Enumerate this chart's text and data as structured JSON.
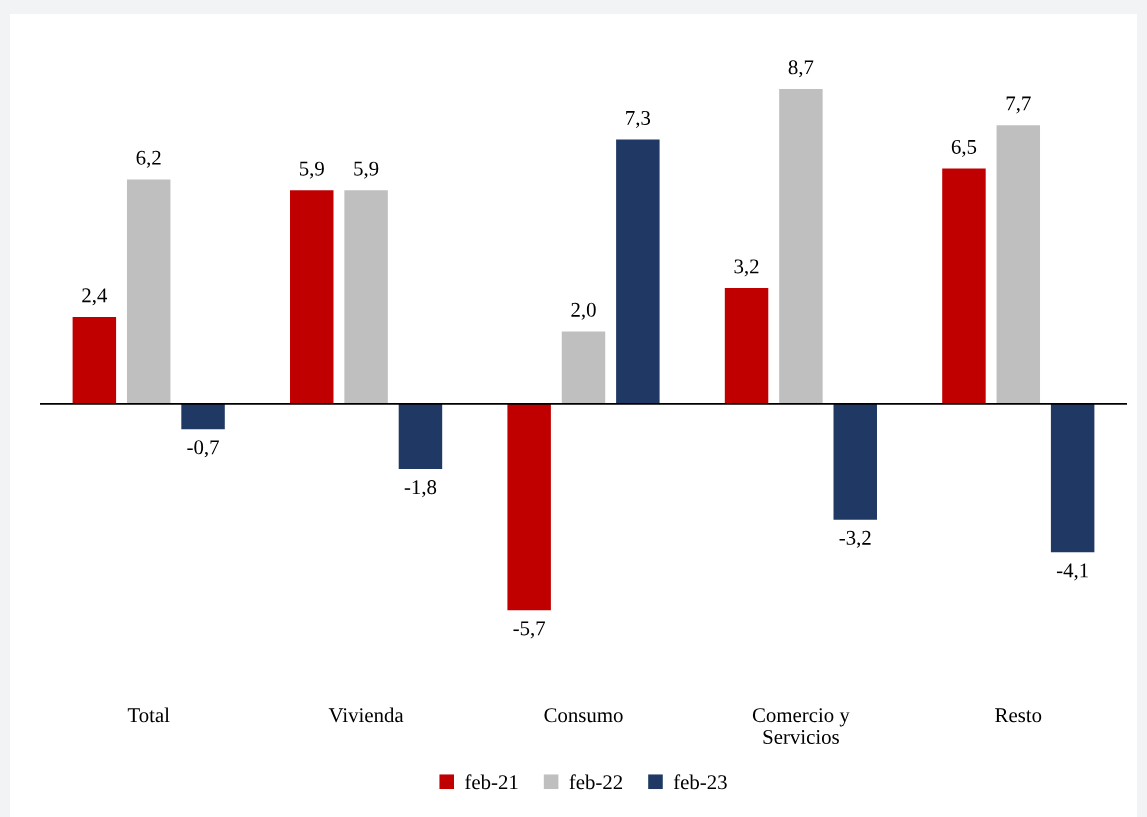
{
  "chart_data": {
    "type": "bar",
    "categories": [
      "Total",
      "Vivienda",
      "Consumo",
      "Comercio y\nServicios",
      "Resto"
    ],
    "series": [
      {
        "name": "feb-21",
        "color": "#c00000",
        "values": [
          2.4,
          5.9,
          -5.7,
          3.2,
          6.5
        ],
        "value_labels": [
          "2,4",
          "5,9",
          "-5,7",
          "3,2",
          "6,5"
        ]
      },
      {
        "name": "feb-22",
        "color": "#bfbfbf",
        "values": [
          6.2,
          5.9,
          2.0,
          8.7,
          7.7
        ],
        "value_labels": [
          "6,2",
          "5,9",
          "2,0",
          "8,7",
          "7,7"
        ]
      },
      {
        "name": "feb-23",
        "color": "#1f3864",
        "values": [
          -0.7,
          -1.8,
          7.3,
          -3.2,
          -4.1
        ],
        "value_labels": [
          "-0,7",
          "-1,8",
          "7,3",
          "-3,2",
          "-4,1"
        ]
      }
    ],
    "legend": "bottom"
  }
}
